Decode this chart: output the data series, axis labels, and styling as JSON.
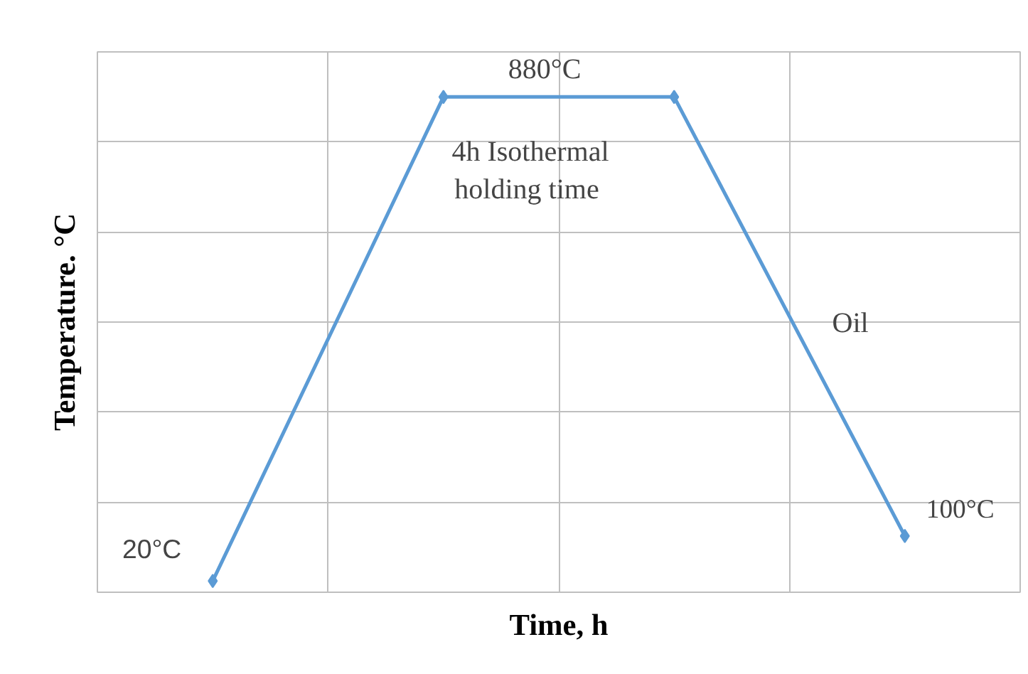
{
  "chart_data": {
    "type": "line",
    "xlabel": "Time, h",
    "ylabel": "Temperature. °C",
    "categories": [
      null,
      null,
      null,
      null
    ],
    "series": [
      {
        "color": "#5b9bd5",
        "values": [
          20,
          880,
          880,
          100
        ],
        "value_labels": [
          "20°C",
          null,
          null,
          "100°C"
        ]
      }
    ],
    "ylim": [
      0,
      960
    ],
    "yticks": [
      {
        "value": 0,
        "label": null
      },
      {
        "value": 160,
        "label": null
      },
      {
        "value": 320,
        "label": null
      },
      {
        "value": 480,
        "label": null
      },
      {
        "value": 640,
        "label": null
      },
      {
        "value": 800,
        "label": null
      },
      {
        "value": 960,
        "label": null
      }
    ],
    "annotations": [
      "880°C",
      "4h Isothermal\nholding  time",
      "Oil"
    ],
    "grid": true,
    "marker": "diamond",
    "line_style": "solid"
  }
}
